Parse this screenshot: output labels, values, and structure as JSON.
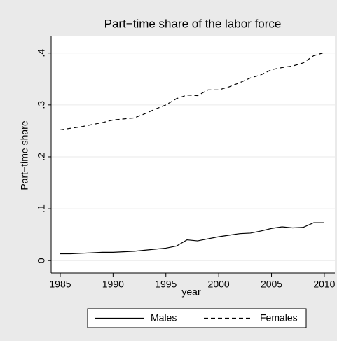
{
  "chart_data": {
    "type": "line",
    "title": "Part−time share of the labor force",
    "x_label": "year",
    "y_label": "Part−time share",
    "x": [
      1985,
      1986,
      1987,
      1988,
      1989,
      1990,
      1991,
      1992,
      1993,
      1994,
      1995,
      1996,
      1997,
      1998,
      1999,
      2000,
      2001,
      2002,
      2003,
      2004,
      2005,
      2006,
      2007,
      2008,
      2009,
      2010
    ],
    "series": [
      {
        "name": "Males",
        "color": "#000000",
        "dash": "solid",
        "values": [
          0.013,
          0.013,
          0.014,
          0.015,
          0.016,
          0.016,
          0.017,
          0.018,
          0.02,
          0.022,
          0.024,
          0.028,
          0.04,
          0.038,
          0.042,
          0.046,
          0.049,
          0.052,
          0.053,
          0.057,
          0.062,
          0.065,
          0.063,
          0.064,
          0.073,
          0.073
        ]
      },
      {
        "name": "Females",
        "color": "#000000",
        "dash": "dashed",
        "values": [
          0.252,
          0.255,
          0.258,
          0.262,
          0.266,
          0.271,
          0.273,
          0.275,
          0.283,
          0.292,
          0.3,
          0.312,
          0.319,
          0.318,
          0.329,
          0.329,
          0.335,
          0.343,
          0.352,
          0.358,
          0.368,
          0.372,
          0.375,
          0.381,
          0.395,
          0.401
        ]
      }
    ],
    "xlim": [
      1984.14,
      2011
    ],
    "ylim": [
      -0.024,
      0.432
    ],
    "xticks": [
      1985,
      1990,
      1995,
      2000,
      2005,
      2010
    ],
    "yticks": [
      0,
      {
        "value": 0.1,
        "label": ".1"
      },
      {
        "value": 0.2,
        "label": ".2"
      },
      {
        "value": 0.3,
        "label": ".3"
      },
      {
        "value": 0.4,
        "label": ".4"
      }
    ],
    "grid": true,
    "legend": "bottom"
  }
}
